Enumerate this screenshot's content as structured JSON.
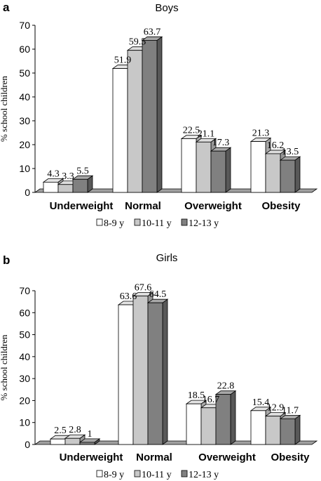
{
  "chart_data": [
    {
      "panel_label": "a",
      "type": "bar",
      "title": "Boys",
      "ylabel": "% school children",
      "ylim": [
        0,
        70
      ],
      "yticks": [
        0,
        10,
        20,
        30,
        40,
        50,
        60,
        70
      ],
      "categories": [
        "Underweight",
        "Normal",
        "Overweight",
        "Obesity"
      ],
      "series": [
        {
          "name": "8-9 y",
          "values": [
            4.3,
            51.9,
            22.5,
            21.3
          ],
          "labels": [
            "4.3",
            "51.9",
            "22.5",
            "21.3"
          ]
        },
        {
          "name": "10-11 y",
          "values": [
            3.3,
            59.5,
            21.1,
            16.2
          ],
          "labels": [
            "3.3",
            "59.5",
            "21.1",
            "16.2"
          ]
        },
        {
          "name": "12-13 y",
          "values": [
            5.5,
            63.7,
            17.3,
            13.5
          ],
          "labels": [
            "5.5",
            "63.7",
            "17.3",
            "13.5"
          ]
        }
      ],
      "legend": "bottom",
      "grid": false
    },
    {
      "panel_label": "b",
      "type": "bar",
      "title": "Girls",
      "ylabel": "% school children",
      "ylim": [
        0,
        70
      ],
      "yticks": [
        0,
        10,
        20,
        30,
        40,
        50,
        60,
        70
      ],
      "categories": [
        "Underweight",
        "Normal",
        "Overweight",
        "Obesity"
      ],
      "series": [
        {
          "name": "8-9 y",
          "values": [
            2.5,
            63.6,
            18.5,
            15.4
          ],
          "labels": [
            "2.5",
            "63.6",
            "18.5",
            "15.4"
          ]
        },
        {
          "name": "10-11 y",
          "values": [
            2.8,
            67.6,
            16.7,
            12.9
          ],
          "labels": [
            "2.8",
            "67.6",
            "16.7",
            "12.9"
          ]
        },
        {
          "name": "12-13 y",
          "values": [
            1,
            64.5,
            22.8,
            11.7
          ],
          "labels": [
            "1",
            "64.5",
            "22.8",
            "11.7"
          ]
        }
      ],
      "legend": "bottom",
      "grid": false
    }
  ],
  "colors": {
    "series_fill": [
      "#ffffff",
      "#c8c8c8",
      "#808080"
    ],
    "series_top": [
      "#e4e4e4",
      "#dedede",
      "#a8a8a8"
    ],
    "series_side": [
      "#a8a8a8",
      "#969696",
      "#585858"
    ],
    "stroke": "#000000",
    "floor": "#a0a0a0"
  }
}
